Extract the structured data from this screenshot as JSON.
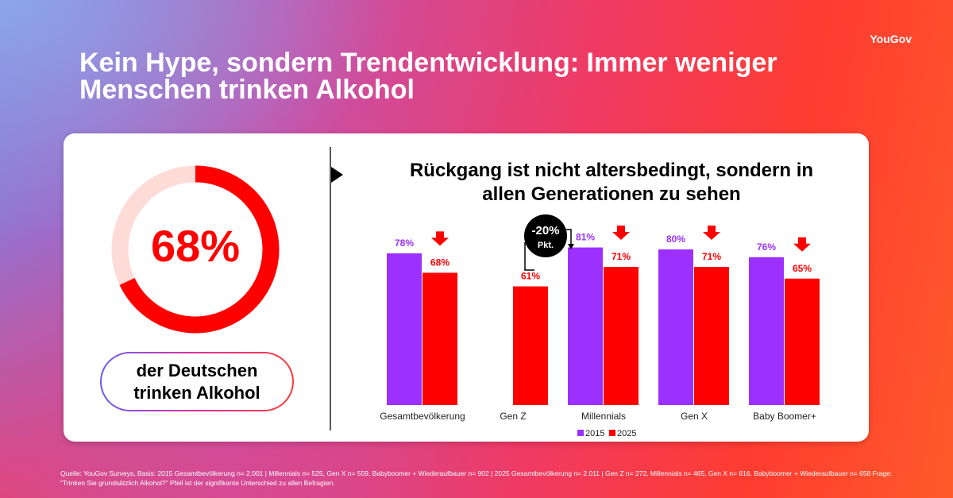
{
  "logo": "YouGov",
  "title": "Kein Hype, sondern Trendentwicklung: Immer weniger Menschen trinken Alkohol",
  "chart_data": [
    {
      "type": "donut",
      "values": [
        68
      ],
      "value_labels": [
        "68%"
      ],
      "color": "#ff0000",
      "track_color": "#fddcd8",
      "caption": "der Deutschen trinken Alkohol"
    },
    {
      "type": "bar",
      "title": "Rückgang ist nicht altersbedingt, sondern in allen Generationen zu sehen",
      "categories": [
        "Gesamtbevölkerung",
        "Gen Z",
        "Millennials",
        "Gen X",
        "Baby Boomer+"
      ],
      "series": [
        {
          "name": "2015",
          "color": "#9b30ff",
          "values": [
            78,
            null,
            81,
            80,
            76
          ],
          "value_labels": [
            "78%",
            null,
            "81%",
            "80%",
            "76%"
          ]
        },
        {
          "name": "2025",
          "color": "#ff0000",
          "values": [
            68,
            61,
            71,
            71,
            65
          ],
          "value_labels": [
            "68%",
            "61%",
            "71%",
            "71%",
            "65%"
          ]
        }
      ],
      "significant": [
        true,
        false,
        true,
        true,
        true
      ],
      "annotation": {
        "label": "-20%",
        "sublabel": "Pkt."
      },
      "ylim": [
        0,
        100
      ],
      "grid": false,
      "legend": "bottom"
    }
  ],
  "source": "Quelle: YouGov Surveys, Basis: 2015 Gesamtbevölkerung n= 2.001 | Millennials n= 525, Gen X n= 559, Babyboomer + Wiederaufbauer n= 902  | 2025 Gesamtbevölkerung n= 2.011  | Gen Z n= 272, Millennials n= 465, Gen X n= 616, Babyboomer + Wiederaufbauer n= 658 Frage: \"Trinken Sie grundsätzlich Alkohol?\" Pfeil ist der signifikante Unterschied zu allen Befragten."
}
